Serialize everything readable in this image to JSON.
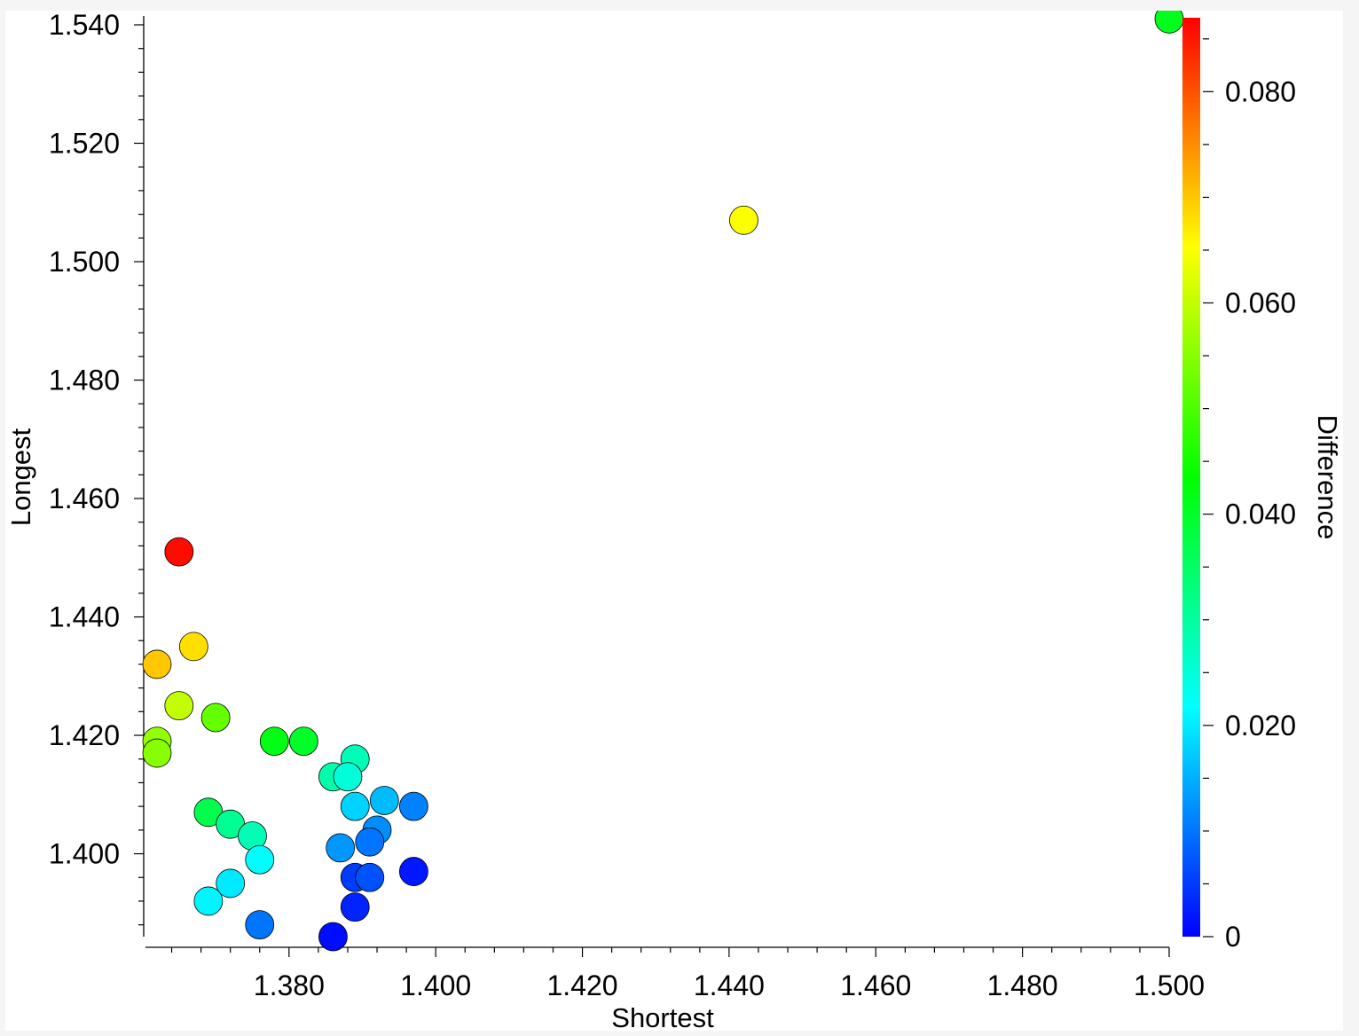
{
  "chart_data": {
    "type": "scatter",
    "title": "",
    "xlabel": "Shortest",
    "ylabel": "Longest",
    "colorbar_label": "Difference",
    "xlim": [
      1.362,
      1.5
    ],
    "ylim": [
      1.386,
      1.54
    ],
    "clim": [
      0,
      0.087
    ],
    "xticks": [
      "1.380",
      "1.400",
      "1.420",
      "1.440",
      "1.460",
      "1.480",
      "1.500"
    ],
    "yticks": [
      "1.400",
      "1.420",
      "1.440",
      "1.460",
      "1.480",
      "1.500",
      "1.520",
      "1.540"
    ],
    "cticks": [
      "0",
      "0.020",
      "0.040",
      "0.060",
      "0.080"
    ],
    "grid": false,
    "colormap": [
      "#0000ff",
      "#00ffff",
      "#00ff00",
      "#ffff00",
      "#ff0000"
    ],
    "points": [
      {
        "x": 1.5,
        "y": 1.541,
        "c": 0.041
      },
      {
        "x": 1.442,
        "y": 1.507,
        "c": 0.065
      },
      {
        "x": 1.365,
        "y": 1.451,
        "c": 0.086
      },
      {
        "x": 1.367,
        "y": 1.435,
        "c": 0.068
      },
      {
        "x": 1.362,
        "y": 1.432,
        "c": 0.07
      },
      {
        "x": 1.365,
        "y": 1.425,
        "c": 0.06
      },
      {
        "x": 1.362,
        "y": 1.419,
        "c": 0.056
      },
      {
        "x": 1.362,
        "y": 1.417,
        "c": 0.055
      },
      {
        "x": 1.37,
        "y": 1.423,
        "c": 0.052
      },
      {
        "x": 1.378,
        "y": 1.419,
        "c": 0.042
      },
      {
        "x": 1.382,
        "y": 1.419,
        "c": 0.04
      },
      {
        "x": 1.389,
        "y": 1.416,
        "c": 0.028
      },
      {
        "x": 1.386,
        "y": 1.413,
        "c": 0.029
      },
      {
        "x": 1.388,
        "y": 1.413,
        "c": 0.025
      },
      {
        "x": 1.389,
        "y": 1.408,
        "c": 0.018
      },
      {
        "x": 1.393,
        "y": 1.409,
        "c": 0.016
      },
      {
        "x": 1.397,
        "y": 1.408,
        "c": 0.011
      },
      {
        "x": 1.392,
        "y": 1.404,
        "c": 0.012
      },
      {
        "x": 1.391,
        "y": 1.402,
        "c": 0.01
      },
      {
        "x": 1.387,
        "y": 1.401,
        "c": 0.013
      },
      {
        "x": 1.369,
        "y": 1.407,
        "c": 0.037
      },
      {
        "x": 1.372,
        "y": 1.405,
        "c": 0.031
      },
      {
        "x": 1.375,
        "y": 1.403,
        "c": 0.028
      },
      {
        "x": 1.376,
        "y": 1.399,
        "c": 0.022
      },
      {
        "x": 1.372,
        "y": 1.395,
        "c": 0.02
      },
      {
        "x": 1.369,
        "y": 1.392,
        "c": 0.021
      },
      {
        "x": 1.376,
        "y": 1.388,
        "c": 0.01
      },
      {
        "x": 1.389,
        "y": 1.396,
        "c": 0.005
      },
      {
        "x": 1.391,
        "y": 1.396,
        "c": 0.007
      },
      {
        "x": 1.397,
        "y": 1.397,
        "c": 0.002
      },
      {
        "x": 1.389,
        "y": 1.391,
        "c": 0.003
      },
      {
        "x": 1.386,
        "y": 1.386,
        "c": 0.001
      }
    ]
  }
}
